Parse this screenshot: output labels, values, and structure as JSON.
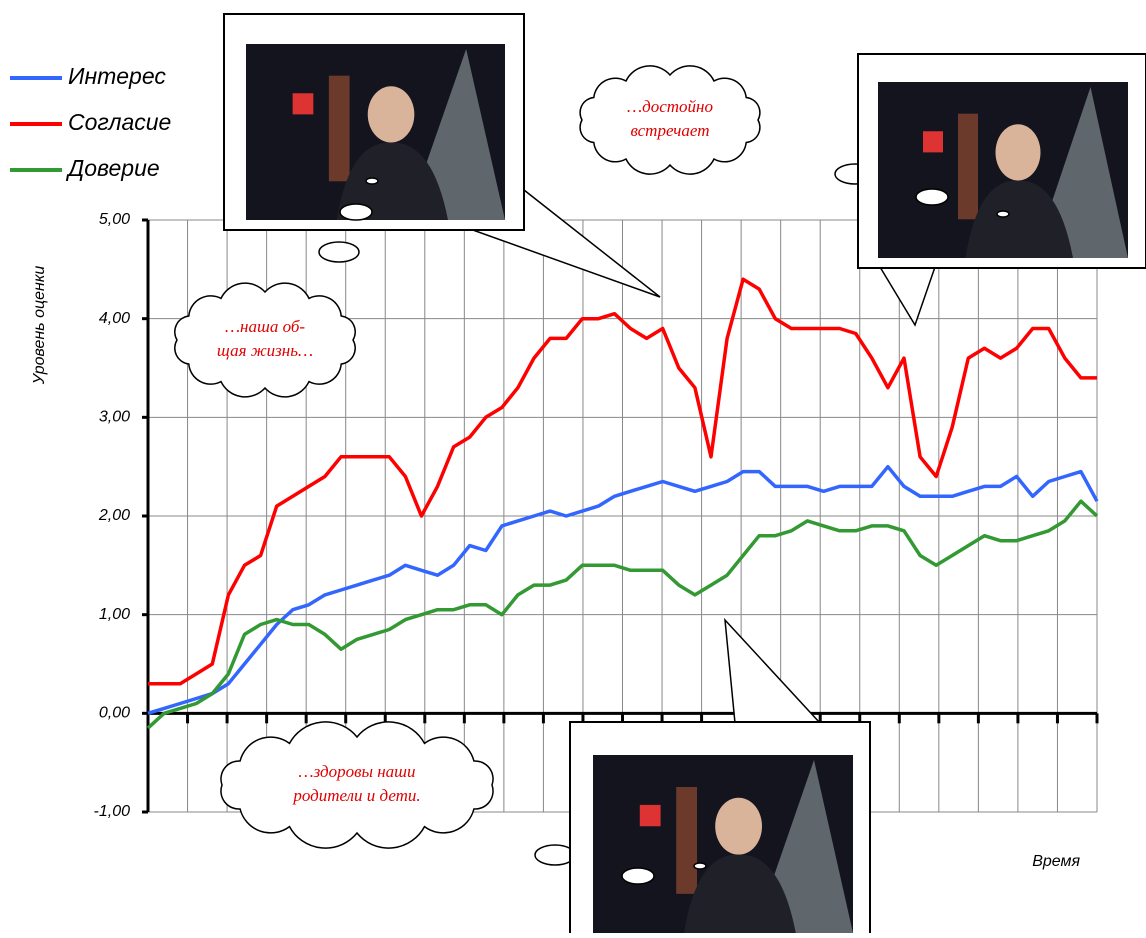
{
  "chart_data": {
    "type": "line",
    "y_label": "Уровень оценки",
    "x_label": "Время",
    "ylim": [
      -1,
      5
    ],
    "yticks": [
      {
        "value": -1,
        "label": "-1,00"
      },
      {
        "value": 0,
        "label": "0,00"
      },
      {
        "value": 1,
        "label": "1,00"
      },
      {
        "value": 2,
        "label": "2,00"
      },
      {
        "value": 3,
        "label": "3,00"
      },
      {
        "value": 4,
        "label": "4,00"
      },
      {
        "value": 5,
        "label": "5,00"
      }
    ],
    "grid": true,
    "legend": "top-left",
    "series": [
      {
        "name": "Интерес",
        "color": "#3366ff",
        "values": [
          0,
          0.05,
          0.1,
          0.15,
          0.2,
          0.3,
          0.5,
          0.7,
          0.9,
          1.05,
          1.1,
          1.2,
          1.25,
          1.3,
          1.35,
          1.4,
          1.5,
          1.45,
          1.4,
          1.5,
          1.7,
          1.65,
          1.9,
          1.95,
          2.0,
          2.05,
          2.0,
          2.05,
          2.1,
          2.2,
          2.25,
          2.3,
          2.35,
          2.3,
          2.25,
          2.3,
          2.35,
          2.45,
          2.45,
          2.3,
          2.3,
          2.3,
          2.25,
          2.3,
          2.3,
          2.3,
          2.5,
          2.3,
          2.2,
          2.2,
          2.2,
          2.25,
          2.3,
          2.3,
          2.4,
          2.2,
          2.35,
          2.4,
          2.45,
          2.15
        ]
      },
      {
        "name": "Согласие",
        "color": "#ff0000",
        "values": [
          0.3,
          0.3,
          0.3,
          0.4,
          0.5,
          1.2,
          1.5,
          1.6,
          2.1,
          2.2,
          2.3,
          2.4,
          2.6,
          2.6,
          2.6,
          2.6,
          2.4,
          2.0,
          2.3,
          2.7,
          2.8,
          3.0,
          3.1,
          3.3,
          3.6,
          3.8,
          3.8,
          4.0,
          4.0,
          4.05,
          3.9,
          3.8,
          3.9,
          3.5,
          3.3,
          2.6,
          3.8,
          4.4,
          4.3,
          4.0,
          3.9,
          3.9,
          3.9,
          3.9,
          3.85,
          3.6,
          3.3,
          3.6,
          2.6,
          2.4,
          2.9,
          3.6,
          3.7,
          3.6,
          3.7,
          3.9,
          3.9,
          3.6,
          3.4,
          3.4
        ]
      },
      {
        "name": "Доверие",
        "color": "#339933",
        "values": [
          -0.15,
          0.0,
          0.05,
          0.1,
          0.2,
          0.4,
          0.8,
          0.9,
          0.95,
          0.9,
          0.9,
          0.8,
          0.65,
          0.75,
          0.8,
          0.85,
          0.95,
          1.0,
          1.05,
          1.05,
          1.1,
          1.1,
          1.0,
          1.2,
          1.3,
          1.3,
          1.35,
          1.5,
          1.5,
          1.5,
          1.45,
          1.45,
          1.45,
          1.3,
          1.2,
          1.3,
          1.4,
          1.6,
          1.8,
          1.8,
          1.85,
          1.95,
          1.9,
          1.85,
          1.85,
          1.9,
          1.9,
          1.85,
          1.6,
          1.5,
          1.6,
          1.7,
          1.8,
          1.75,
          1.75,
          1.8,
          1.85,
          1.95,
          2.15,
          2.0
        ]
      }
    ],
    "annotations": [
      {
        "lines": [
          "…достойно",
          "встречает"
        ]
      },
      {
        "lines": [
          "…наша об-",
          "щая жизнь…"
        ]
      },
      {
        "lines": [
          "…здоровы наши",
          "родители и дети."
        ]
      }
    ]
  }
}
